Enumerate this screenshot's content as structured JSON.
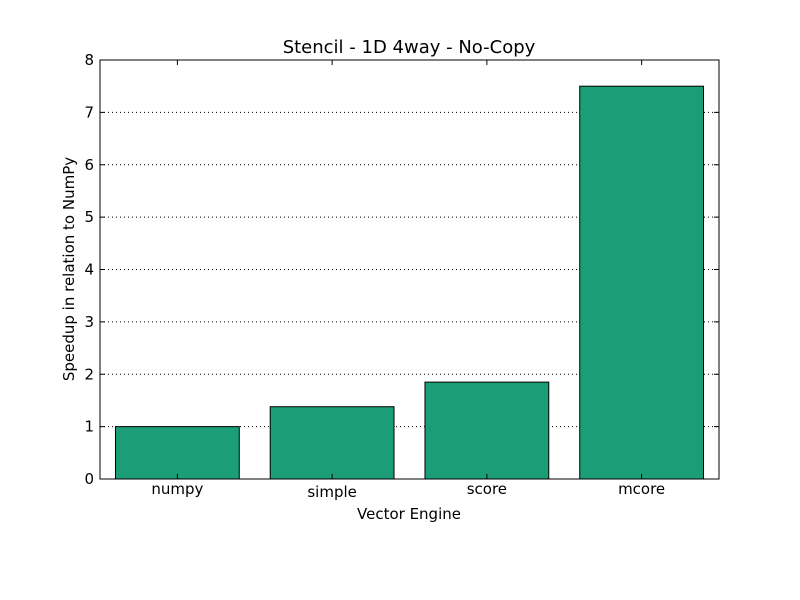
{
  "chart_data": {
    "type": "bar",
    "title": "Stencil - 1D 4way - No-Copy",
    "xlabel": "Vector Engine",
    "ylabel": "Speedup in relation to NumPy",
    "categories": [
      "numpy",
      "simple",
      "score",
      "mcore"
    ],
    "values": [
      1.0,
      1.38,
      1.85,
      7.5
    ],
    "ylim": [
      0,
      8
    ],
    "yticks": [
      "0",
      "1",
      "2",
      "3",
      "4",
      "5",
      "6",
      "7",
      "8"
    ],
    "grid": "horizontal dotted",
    "bar_color": "#1b9e77",
    "legend": "none"
  }
}
